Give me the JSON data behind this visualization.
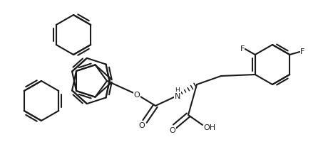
{
  "bg": "#ffffff",
  "lc": "#1a1a1a",
  "lw": 1.5,
  "fs": 8.0,
  "figsize": [
    4.67,
    2.32
  ],
  "dpi": 100,
  "xlim": [
    0,
    467
  ],
  "ylim": [
    232,
    0
  ],
  "BL": 28
}
